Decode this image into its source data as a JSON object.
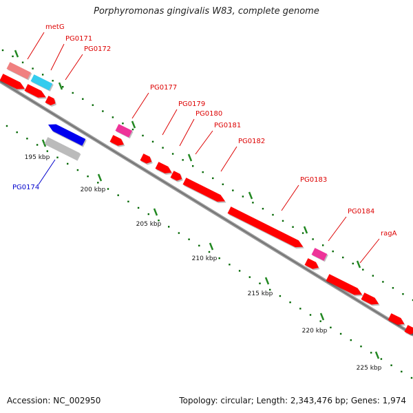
{
  "header": {
    "title": "Porphyromonas gingivalis W83, complete genome"
  },
  "footer": {
    "accession": "Accession: NC_002950",
    "summary": "Topology: circular; Length: 2,343,476 bp; Genes: 1,974"
  },
  "scale": {
    "ticks": [
      "195 kbp",
      "200 kbp",
      "205 kbp",
      "210 kbp",
      "215 kbp",
      "220 kbp",
      "225 kbp"
    ]
  },
  "genes": [
    {
      "label": "metG",
      "color": "#f08080",
      "strand": "+",
      "labelColor": "#dd0000"
    },
    {
      "label": "PG0171",
      "color": "#33ccee",
      "strand": "+",
      "labelColor": "#dd0000"
    },
    {
      "label": "PG0172",
      "color": "#ff0000",
      "strand": "+",
      "labelColor": "#dd0000"
    },
    {
      "label": "PG0174",
      "color": "#0000ee",
      "strand": "-",
      "labelColor": "#0000cc"
    },
    {
      "label": "PG0177",
      "color": "#ee3399",
      "strand": "+",
      "labelColor": "#dd0000"
    },
    {
      "label": "PG0179",
      "color": "#ff0000",
      "strand": "+",
      "labelColor": "#dd0000"
    },
    {
      "label": "PG0180",
      "color": "#ff0000",
      "strand": "+",
      "labelColor": "#dd0000"
    },
    {
      "label": "PG0181",
      "color": "#ff0000",
      "strand": "+",
      "labelColor": "#dd0000"
    },
    {
      "label": "PG0182",
      "color": "#ff0000",
      "strand": "+",
      "labelColor": "#dd0000"
    },
    {
      "label": "PG0183",
      "color": "#ff0000",
      "strand": "+",
      "labelColor": "#dd0000"
    },
    {
      "label": "PG0184",
      "color": "#ee3399",
      "strand": "+",
      "labelColor": "#dd0000"
    },
    {
      "label": "ragA",
      "color": "#ff0000",
      "strand": "+",
      "labelColor": "#dd0000"
    }
  ],
  "colors": {
    "backbone": "#888888",
    "tickDots": "#006600",
    "unlabeledGene": "#ff0000",
    "greyFeature": "#bbbbbb"
  }
}
